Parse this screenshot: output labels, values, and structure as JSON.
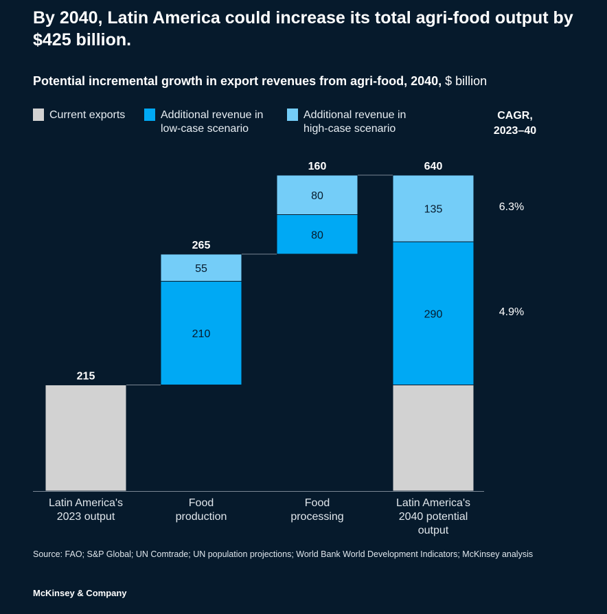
{
  "title": "By 2040, Latin America could increase its total agri-food output by $425 billion.",
  "subtitle": "Potential incremental growth in export revenues from agri-food, 2040,",
  "subtitle_unit": "$ billion",
  "legend": [
    {
      "label": "Current exports",
      "color": "#d2d2d2"
    },
    {
      "label": "Additional revenue in low-case scenario",
      "color": "#00a9f4"
    },
    {
      "label": "Additional revenue in high-case scenario",
      "color": "#74cdf8"
    }
  ],
  "cagr": {
    "header_line1": "CAGR,",
    "header_line2": "2023–40",
    "high": "6.3%",
    "low": "4.9%"
  },
  "chart_data": {
    "type": "waterfall",
    "categories": [
      "Latin America's 2023 output",
      "Food production",
      "Food processing",
      "Latin America's 2040 potential output"
    ],
    "category_lines": [
      [
        "Latin America's",
        "2023 output"
      ],
      [
        "Food",
        "production"
      ],
      [
        "Food",
        "processing"
      ],
      [
        "Latin America's",
        "2040 potential",
        "output"
      ]
    ],
    "totals": [
      "215",
      "265",
      "160",
      "640"
    ],
    "bars": [
      {
        "base": 0,
        "segments": [
          {
            "series": 0,
            "value": 215
          }
        ]
      },
      {
        "base": 215,
        "segments": [
          {
            "series": 1,
            "value": 210
          },
          {
            "series": 2,
            "value": 55
          }
        ]
      },
      {
        "base": 480,
        "segments": [
          {
            "series": 1,
            "value": 80
          },
          {
            "series": 2,
            "value": 80
          }
        ]
      },
      {
        "base": 0,
        "segments": [
          {
            "series": 0,
            "value": 215
          },
          {
            "series": 1,
            "value": 290
          },
          {
            "series": 2,
            "value": 135
          }
        ]
      }
    ],
    "ylim": [
      0,
      640
    ]
  },
  "source": "Source: FAO; S&P Global; UN Comtrade; UN population projections; World Bank World Development Indicators; McKinsey analysis",
  "brand": "McKinsey & Company"
}
